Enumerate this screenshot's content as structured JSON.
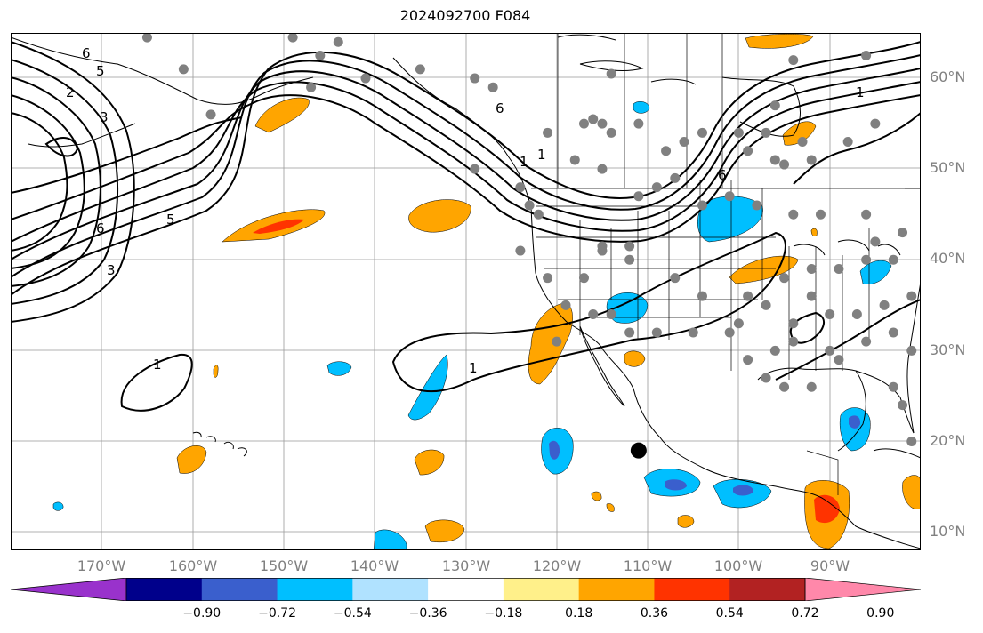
{
  "title": "2024092700 F084",
  "map": {
    "projection": "plate-carree",
    "lon_range": [
      -180,
      -80
    ],
    "lat_range": [
      8,
      65
    ],
    "lat_labels": [
      "60°N",
      "50°N",
      "40°N",
      "30°N",
      "20°N",
      "10°N"
    ],
    "lon_labels": [
      "170°W",
      "160°W",
      "150°W",
      "140°W",
      "130°W",
      "120°W",
      "110°W",
      "100°W",
      "90°W"
    ],
    "contour_labels": [
      "6",
      "5",
      "3",
      "2",
      "6",
      "5",
      "3",
      "1",
      "6",
      "1",
      "1",
      "6",
      "1",
      "1"
    ],
    "storm_marker": {
      "lon": -111,
      "lat": 19
    },
    "shading_colors": {
      "strong_positive": "#ff3300",
      "positive": "#ffa500",
      "negative": "#00bfff",
      "strong_negative": "#3a5fcd"
    }
  },
  "colorbar": {
    "ticks": [
      "−0.90",
      "−0.72",
      "−0.54",
      "−0.36",
      "−0.18",
      "0.18",
      "0.36",
      "0.54",
      "0.72",
      "0.90"
    ],
    "colors": [
      "#9932cc",
      "#00008b",
      "#3a5fcd",
      "#00bfff",
      "#b0e2ff",
      "#ffffff",
      "#fff08a",
      "#ffa500",
      "#ff3300",
      "#b22222",
      "#ff88aa"
    ]
  }
}
